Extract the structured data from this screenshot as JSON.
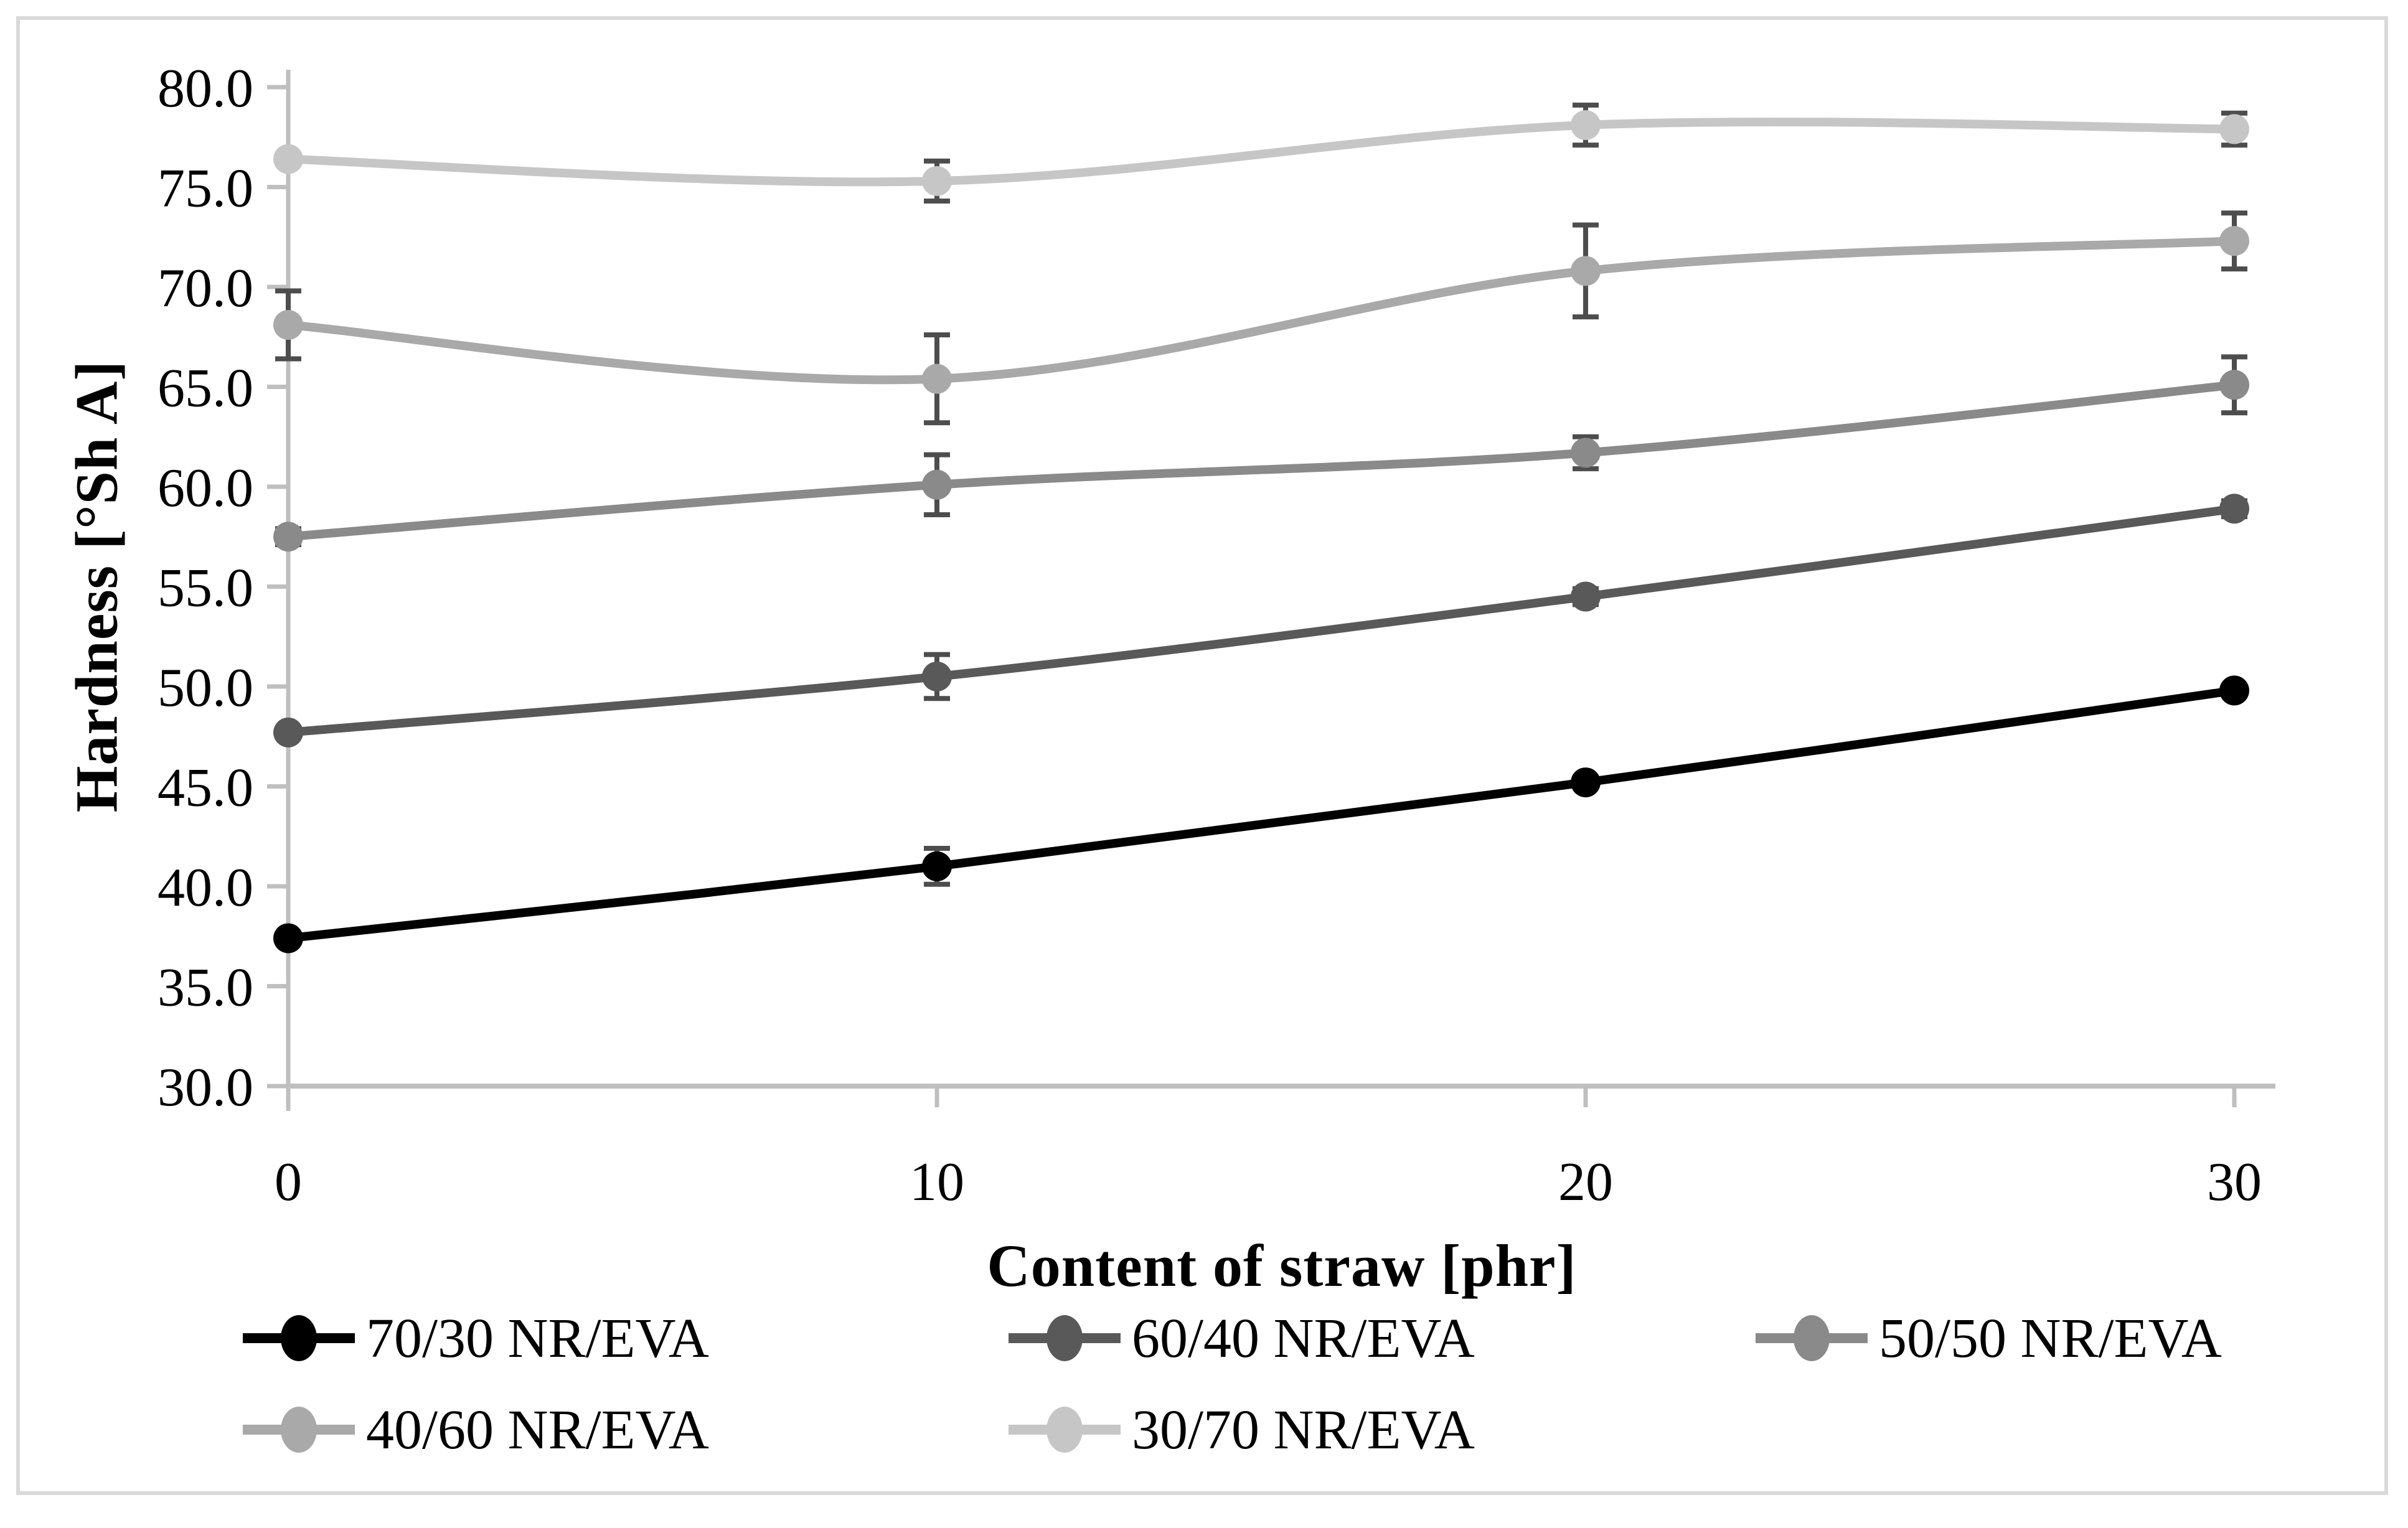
{
  "figure": {
    "background": "#ffffff",
    "border_color": "#d9d9d9"
  },
  "chart_data": {
    "type": "line",
    "title": "",
    "xlabel": "Content of straw [phr]",
    "ylabel": "Hardness [°Sh A]",
    "x_categories": [
      0,
      10,
      20,
      30
    ],
    "ylim": [
      30.0,
      80.0
    ],
    "ytick_step": 5.0,
    "ytick_labels": [
      "30.0",
      "35.0",
      "40.0",
      "45.0",
      "50.0",
      "55.0",
      "60.0",
      "65.0",
      "70.0",
      "75.0",
      "80.0"
    ],
    "xtick_labels": [
      "0",
      "10",
      "20",
      "30"
    ],
    "grid": false,
    "legend_position": "bottom",
    "line_style": "smooth",
    "axis_color": "#bfbfbf",
    "error_bar_color": "#4d4d4d",
    "series": [
      {
        "name": "70/30 NR/EVA",
        "color": "#000000",
        "values": [
          37.4,
          41.0,
          45.2,
          49.8
        ],
        "errors": [
          0.3,
          0.9,
          0.3,
          0.3
        ]
      },
      {
        "name": "60/40 NR/EVA",
        "color": "#595959",
        "values": [
          47.7,
          50.5,
          54.5,
          58.9
        ],
        "errors": [
          0.3,
          1.1,
          0.4,
          0.4
        ]
      },
      {
        "name": "50/50 NR/EVA",
        "color": "#8a8a8a",
        "values": [
          57.5,
          60.1,
          61.7,
          65.1
        ],
        "errors": [
          0.4,
          1.5,
          0.8,
          1.4
        ]
      },
      {
        "name": "40/60 NR/EVA",
        "color": "#a9a9a9",
        "values": [
          68.1,
          65.4,
          70.8,
          72.3
        ],
        "errors": [
          1.7,
          2.2,
          2.3,
          1.4
        ]
      },
      {
        "name": "30/70 NR/EVA",
        "color": "#c6c6c6",
        "values": [
          76.4,
          75.3,
          78.1,
          77.9
        ],
        "errors": [
          0.3,
          1.0,
          1.0,
          0.8
        ]
      }
    ],
    "legend_rows": [
      [
        "70/30 NR/EVA",
        "60/40 NR/EVA",
        "50/50 NR/EVA"
      ],
      [
        "40/60 NR/EVA",
        "30/70 NR/EVA"
      ]
    ]
  }
}
